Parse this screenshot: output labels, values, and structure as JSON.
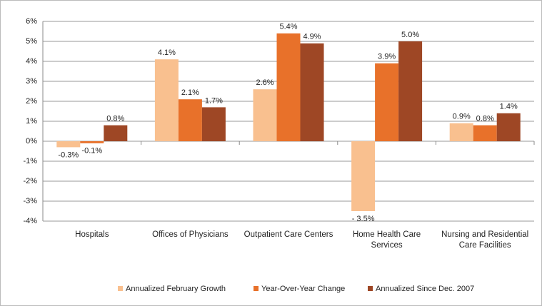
{
  "chart_data": {
    "type": "bar",
    "categories": [
      "Hospitals",
      "Offices of Physicians",
      "Outpatient Care Centers",
      "Home Health Care Services",
      "Nursing and Residential Care Facilities"
    ],
    "series": [
      {
        "name": "Annualized February Growth",
        "color": "#f9c08f",
        "values": [
          -0.3,
          4.1,
          2.6,
          -3.5,
          0.9
        ],
        "value_labels": [
          "-0.3%",
          "4.1%",
          "2.6%",
          "- 3.5%",
          "0.9%"
        ]
      },
      {
        "name": "Year-Over-Year Change",
        "color": "#e8712a",
        "values": [
          -0.1,
          2.1,
          5.4,
          3.9,
          0.8
        ],
        "value_labels": [
          "-0.1%",
          "2.1%",
          "5.4%",
          "3.9%",
          "0.8%"
        ]
      },
      {
        "name": "Annualized Since Dec. 2007",
        "color": "#9e4725",
        "values": [
          0.8,
          1.7,
          4.9,
          5.0,
          1.4
        ],
        "value_labels": [
          "0.8%",
          "1.7%",
          "4.9%",
          "5.0%",
          "1.4%"
        ]
      }
    ],
    "ylim": [
      -4,
      6
    ],
    "yticks": [
      {
        "value": -4,
        "label": "-4%"
      },
      {
        "value": -3,
        "label": "-3%"
      },
      {
        "value": -2,
        "label": "-2%"
      },
      {
        "value": -1,
        "label": "-1%"
      },
      {
        "value": 0,
        "label": "0%"
      },
      {
        "value": 1,
        "label": "1%"
      },
      {
        "value": 2,
        "label": "2%"
      },
      {
        "value": 3,
        "label": "3%"
      },
      {
        "value": 4,
        "label": "4%"
      },
      {
        "value": 5,
        "label": "5%"
      },
      {
        "value": 6,
        "label": "6%"
      }
    ],
    "grid": true,
    "legend": "bottom"
  }
}
